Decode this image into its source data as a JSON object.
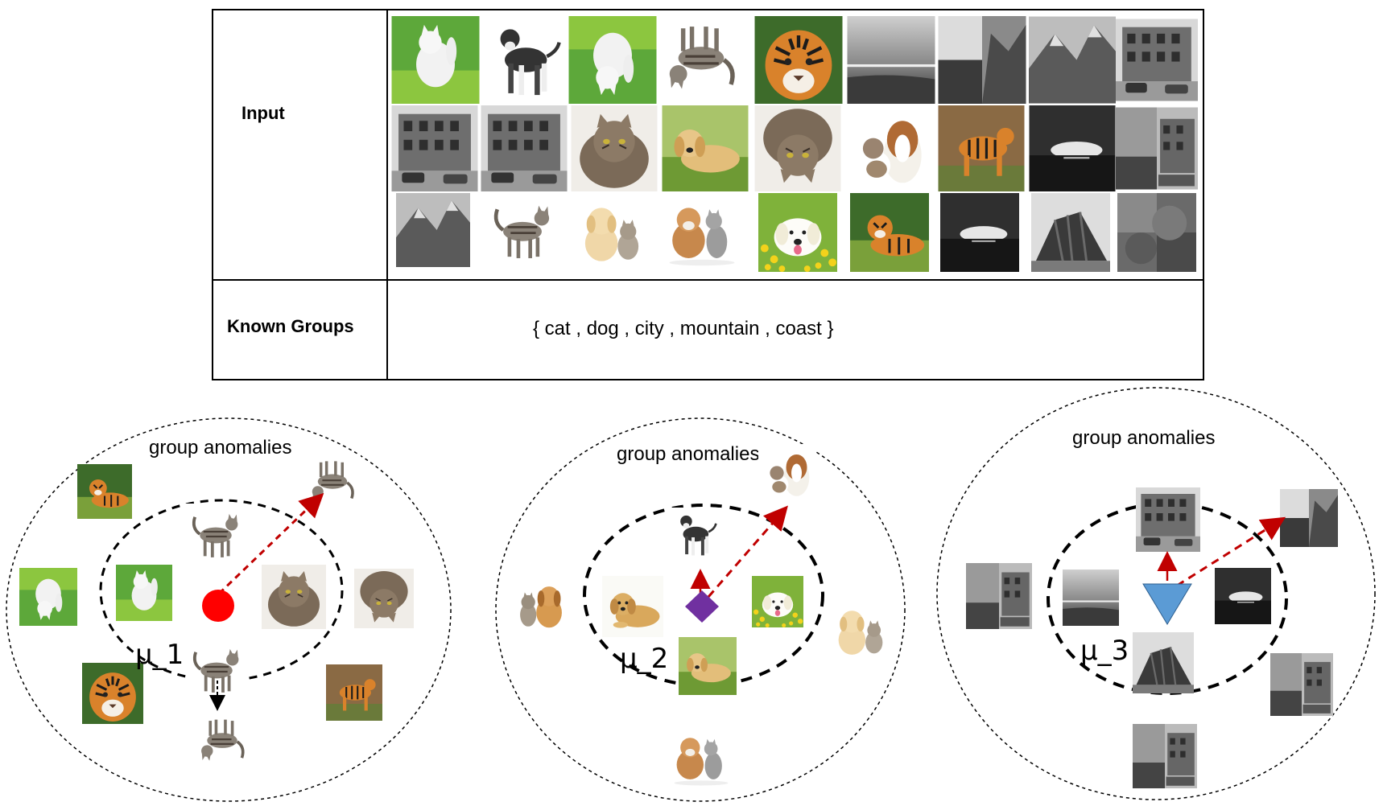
{
  "table": {
    "input_label": "Input",
    "known_groups_label": "Known  Groups",
    "known_groups_value": "{ cat , dog ,  city , mountain , coast }"
  },
  "colors": {
    "green": "#5da83a",
    "grass": "#8cc63f",
    "tiger": "#d9822b",
    "cat_gray": "#8a8278",
    "cat_white": "#f2f2f2",
    "dog_gold": "#d9a85c",
    "dog_dark": "#333333",
    "flower_yellow": "#f3d21b",
    "gray_dark": "#3a3a3a",
    "gray_mid": "#888888",
    "gray_light": "#cfcfcf",
    "sky_blue": "#6aa0d8",
    "red": "#ff0000",
    "arrow_red": "#c00000",
    "purple": "#7030a0",
    "triangle_blue": "#5b9bd5"
  },
  "icons": {
    "white_cat": "white-cat-on-grass-photo",
    "pitbull": "pitbull-dog-photo",
    "flipped_white_cat": "flipped-white-cat-on-grass-photo",
    "flipped_tabby_cat": "flipped-tabby-cat-photo",
    "tiger": "tiger-face-photo",
    "coast": "grayscale-coast-photo",
    "mountain": "grayscale-mountain-photo",
    "city": "grayscale-city-street-photo",
    "fluffy_cat": "fluffy-cat-photo",
    "lying_dog": "lying-golden-puppy-photo",
    "collie_cat": "collie-with-cat-photo",
    "standing_tiger": "standing-tiger-photo",
    "tabby_cat": "walking-tabby-cat-photo",
    "puppy_kitten": "puppy-and-kitten-photo",
    "bulldog_cat": "bulldog-and-cat-photo",
    "dog_flowers": "dog-in-flowers-photo",
    "lying_tiger": "lying-tiger-photo",
    "city_coast": "city-coast-mix-photo"
  },
  "clusters": [
    {
      "title": "group anomalies",
      "mean_label": "μ_1",
      "mean_marker": "red-circle"
    },
    {
      "title": "group anomalies",
      "mean_label": "μ_2",
      "mean_marker": "purple-diamond"
    },
    {
      "title": "group anomalies",
      "mean_label": "μ_3",
      "mean_marker": "blue-triangle"
    }
  ]
}
